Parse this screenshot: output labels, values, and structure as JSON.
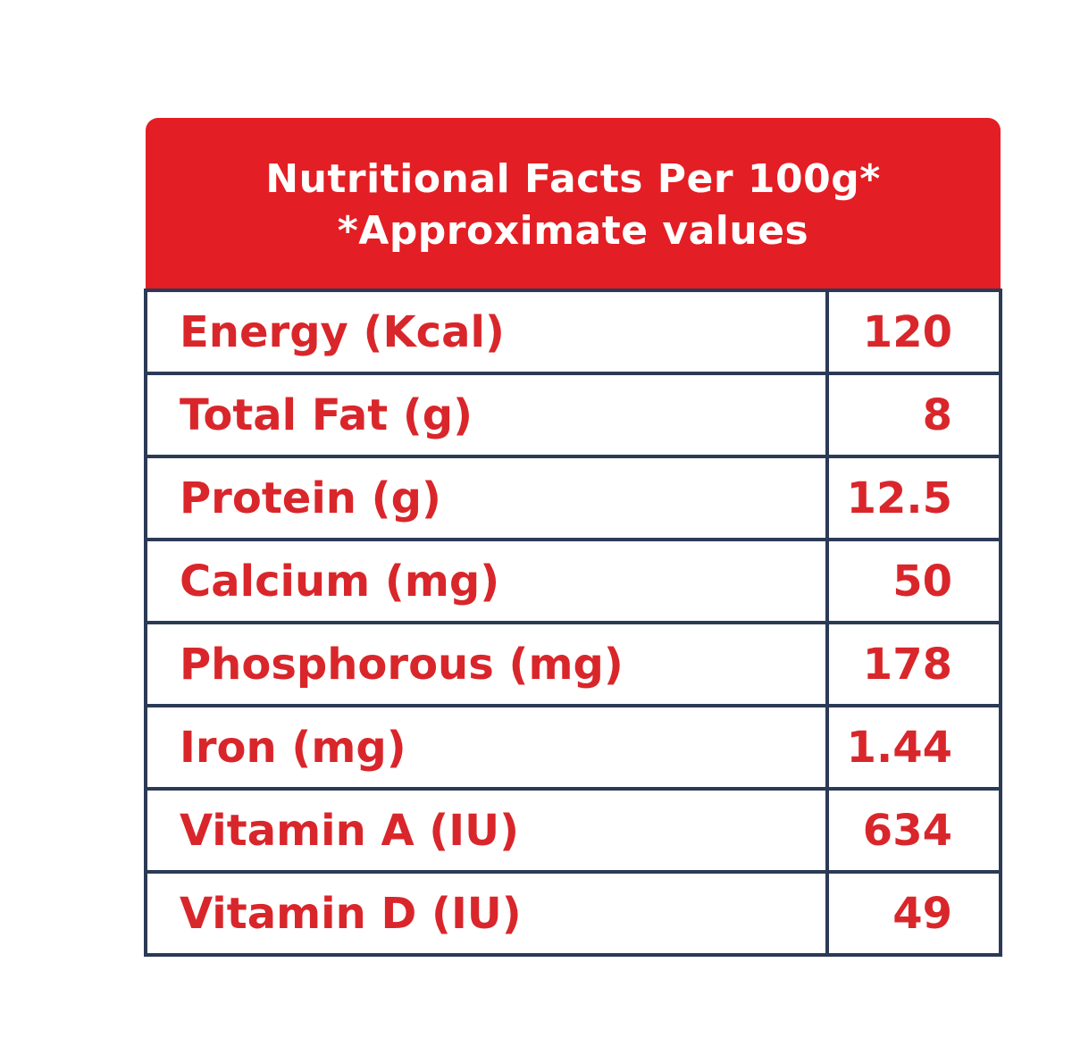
{
  "header": {
    "title": "Nutritional Facts Per 100g*",
    "subtitle": "*Approximate values"
  },
  "table": {
    "rows": [
      [
        "Energy (Kcal)",
        120
      ],
      [
        "Total Fat (g)",
        8
      ],
      [
        "Protein (g)",
        12.5
      ],
      [
        "Calcium (mg)",
        50
      ],
      [
        "Phosphorous (mg)",
        178
      ],
      [
        "Iron (mg)",
        1.44
      ],
      [
        "Vitamin A (IU)",
        634
      ],
      [
        "Vitamin D (IU)",
        49
      ]
    ]
  }
}
